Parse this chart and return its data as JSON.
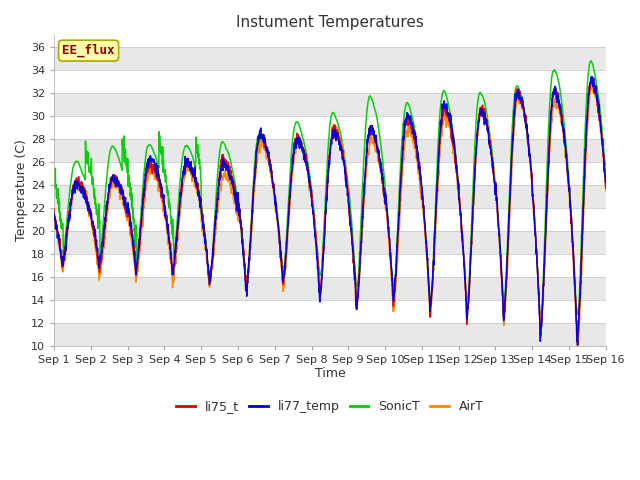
{
  "title": "Instument Temperatures",
  "xlabel": "Time",
  "ylabel": "Temperature (C)",
  "ylim": [
    10,
    37
  ],
  "yticks": [
    10,
    12,
    14,
    16,
    18,
    20,
    22,
    24,
    26,
    28,
    30,
    32,
    34,
    36
  ],
  "x_labels": [
    "Sep 1",
    "Sep 2",
    "Sep 3",
    "Sep 4",
    "Sep 5",
    "Sep 6",
    "Sep 7",
    "Sep 8",
    "Sep 9",
    "Sep 10",
    "Sep 11",
    "Sep 12",
    "Sep 13",
    "Sep 14",
    "Sep 15",
    "Sep 16"
  ],
  "series": {
    "li75_t": {
      "color": "#dd0000",
      "lw": 1.1
    },
    "li77_temp": {
      "color": "#0000dd",
      "lw": 1.1
    },
    "SonicT": {
      "color": "#00cc00",
      "lw": 1.1
    },
    "AirT": {
      "color": "#ff8800",
      "lw": 1.1
    }
  },
  "legend_labels": [
    "li75_t",
    "li77_temp",
    "SonicT",
    "AirT"
  ],
  "legend_colors": [
    "#dd0000",
    "#0000dd",
    "#00cc00",
    "#ff8800"
  ],
  "figure_bg": "#ffffff",
  "plot_bg_color": "#ffffff",
  "grid_color": "#cccccc",
  "alt_band_color": "#e8e8e8",
  "annotation_text": "EE_flux",
  "annotation_color": "#8b0000",
  "annotation_bg": "#ffffaa",
  "annotation_edge": "#aaaa00",
  "title_fontsize": 11,
  "tick_fontsize": 8,
  "num_days": 15,
  "points_per_day": 144
}
